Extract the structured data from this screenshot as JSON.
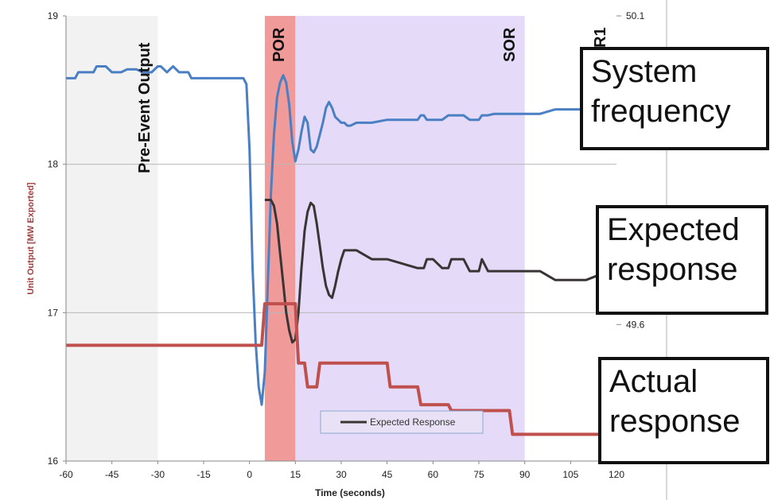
{
  "chart_data": {
    "type": "line",
    "xlabel": "Time (seconds)",
    "ylabel_left": "Unit Output [MW Exported]",
    "ylim_left": [
      16,
      19
    ],
    "yticks_left": [
      "16",
      "17",
      "18",
      "19"
    ],
    "yticks_right": [
      "50.1",
      "49.6"
    ],
    "xlim": [
      -60,
      120
    ],
    "xticks": [
      "-60",
      "-45",
      "-30",
      "-15",
      "0",
      "15",
      "30",
      "45",
      "60",
      "75",
      "90",
      "105",
      "120"
    ],
    "regions": [
      {
        "label": "Pre-Event Output",
        "x0": -60,
        "x1": -30,
        "color": "#f2f2f2"
      },
      {
        "label": "POR",
        "x0": 5,
        "x1": 15,
        "color": "#ee8f8f"
      },
      {
        "label": "SOR",
        "x0": 15,
        "x1": 90,
        "color": "#e5dbf8"
      }
    ],
    "region_labels": {
      "pre": "Pre-Event Output",
      "por": "POR",
      "sor": "SOR",
      "r1": "R1"
    },
    "legend": {
      "entry": "Expected Response",
      "placement": "bottom-center"
    },
    "series": [
      {
        "name": "System frequency",
        "color": "#4a7fc4",
        "x": [
          -60,
          -57,
          -56,
          -51,
          -50,
          -47,
          -45,
          -42,
          -40,
          -37,
          -35,
          -32,
          -30,
          -29,
          -27,
          -26,
          -25,
          -24,
          -23,
          -22,
          -20,
          -19,
          -17,
          -16,
          -15,
          -13,
          -10,
          -7,
          -5,
          -2,
          -1,
          0,
          1,
          2,
          3,
          4,
          5,
          6,
          7,
          8,
          9,
          10,
          11,
          12,
          13,
          14,
          15,
          16,
          17,
          18,
          19,
          20,
          21,
          22,
          23,
          24,
          25,
          26,
          27,
          28,
          29,
          30,
          31,
          32,
          33,
          35,
          40,
          45,
          55,
          56,
          57,
          58,
          60,
          63,
          65,
          66,
          70,
          72,
          75,
          76,
          78,
          80,
          90,
          95,
          100,
          110,
          118,
          120
        ],
        "values": [
          18.58,
          18.58,
          18.62,
          18.62,
          18.66,
          18.66,
          18.62,
          18.62,
          18.64,
          18.64,
          18.62,
          18.62,
          18.66,
          18.66,
          18.62,
          18.64,
          18.66,
          18.64,
          18.62,
          18.62,
          18.62,
          18.58,
          18.58,
          18.58,
          18.58,
          18.58,
          18.58,
          18.58,
          18.58,
          18.58,
          18.54,
          18.1,
          17.3,
          16.8,
          16.5,
          16.38,
          16.6,
          17.2,
          17.8,
          18.2,
          18.45,
          18.55,
          18.6,
          18.55,
          18.4,
          18.15,
          18.02,
          18.1,
          18.22,
          18.32,
          18.28,
          18.1,
          18.08,
          18.12,
          18.2,
          18.28,
          18.38,
          18.42,
          18.38,
          18.32,
          18.3,
          18.28,
          18.28,
          18.26,
          18.26,
          18.28,
          18.28,
          18.3,
          18.3,
          18.33,
          18.33,
          18.3,
          18.3,
          18.3,
          18.33,
          18.33,
          18.33,
          18.3,
          18.3,
          18.33,
          18.33,
          18.34,
          18.34,
          18.34,
          18.37,
          18.37,
          18.39,
          18.39
        ]
      },
      {
        "name": "Expected Response",
        "color": "#3a3535",
        "x": [
          5,
          7,
          8,
          9,
          10,
          11,
          12,
          13,
          14,
          15,
          16,
          17,
          18,
          19,
          20,
          21,
          22,
          23,
          24,
          25,
          26,
          27,
          28,
          29,
          30,
          31,
          32,
          35,
          40,
          45,
          55,
          57,
          58,
          60,
          63,
          65,
          66,
          67,
          70,
          72,
          75,
          76,
          78,
          90,
          95,
          100,
          110,
          115,
          118,
          120
        ],
        "values": [
          17.76,
          17.76,
          17.72,
          17.6,
          17.4,
          17.2,
          17.0,
          16.88,
          16.8,
          16.82,
          17.0,
          17.3,
          17.55,
          17.68,
          17.74,
          17.72,
          17.6,
          17.45,
          17.3,
          17.18,
          17.12,
          17.1,
          17.18,
          17.28,
          17.36,
          17.42,
          17.42,
          17.42,
          17.36,
          17.36,
          17.3,
          17.3,
          17.36,
          17.36,
          17.3,
          17.3,
          17.36,
          17.36,
          17.36,
          17.28,
          17.28,
          17.36,
          17.28,
          17.28,
          17.28,
          17.22,
          17.22,
          17.26,
          17.26,
          17.26
        ]
      },
      {
        "name": "Actual response",
        "color": "#c0504d",
        "x": [
          -60,
          -30,
          0,
          4,
          5,
          15,
          16,
          18,
          19,
          22,
          23,
          45,
          46,
          55,
          56,
          65,
          66,
          85,
          86,
          95,
          105,
          120
        ],
        "values": [
          16.78,
          16.78,
          16.78,
          16.78,
          17.06,
          17.06,
          16.66,
          16.66,
          16.5,
          16.5,
          16.66,
          16.66,
          16.5,
          16.5,
          16.38,
          16.38,
          16.34,
          16.34,
          16.18,
          16.18,
          16.18,
          16.18
        ]
      }
    ]
  },
  "callouts": {
    "frequency": {
      "lines": [
        "System",
        "frequency"
      ],
      "color": "#4a7fc4"
    },
    "expected": {
      "lines": [
        "Expected",
        "response"
      ],
      "color": "#000000"
    },
    "actual": {
      "lines": [
        "Actual",
        "response"
      ],
      "color": "#c0504d"
    }
  }
}
